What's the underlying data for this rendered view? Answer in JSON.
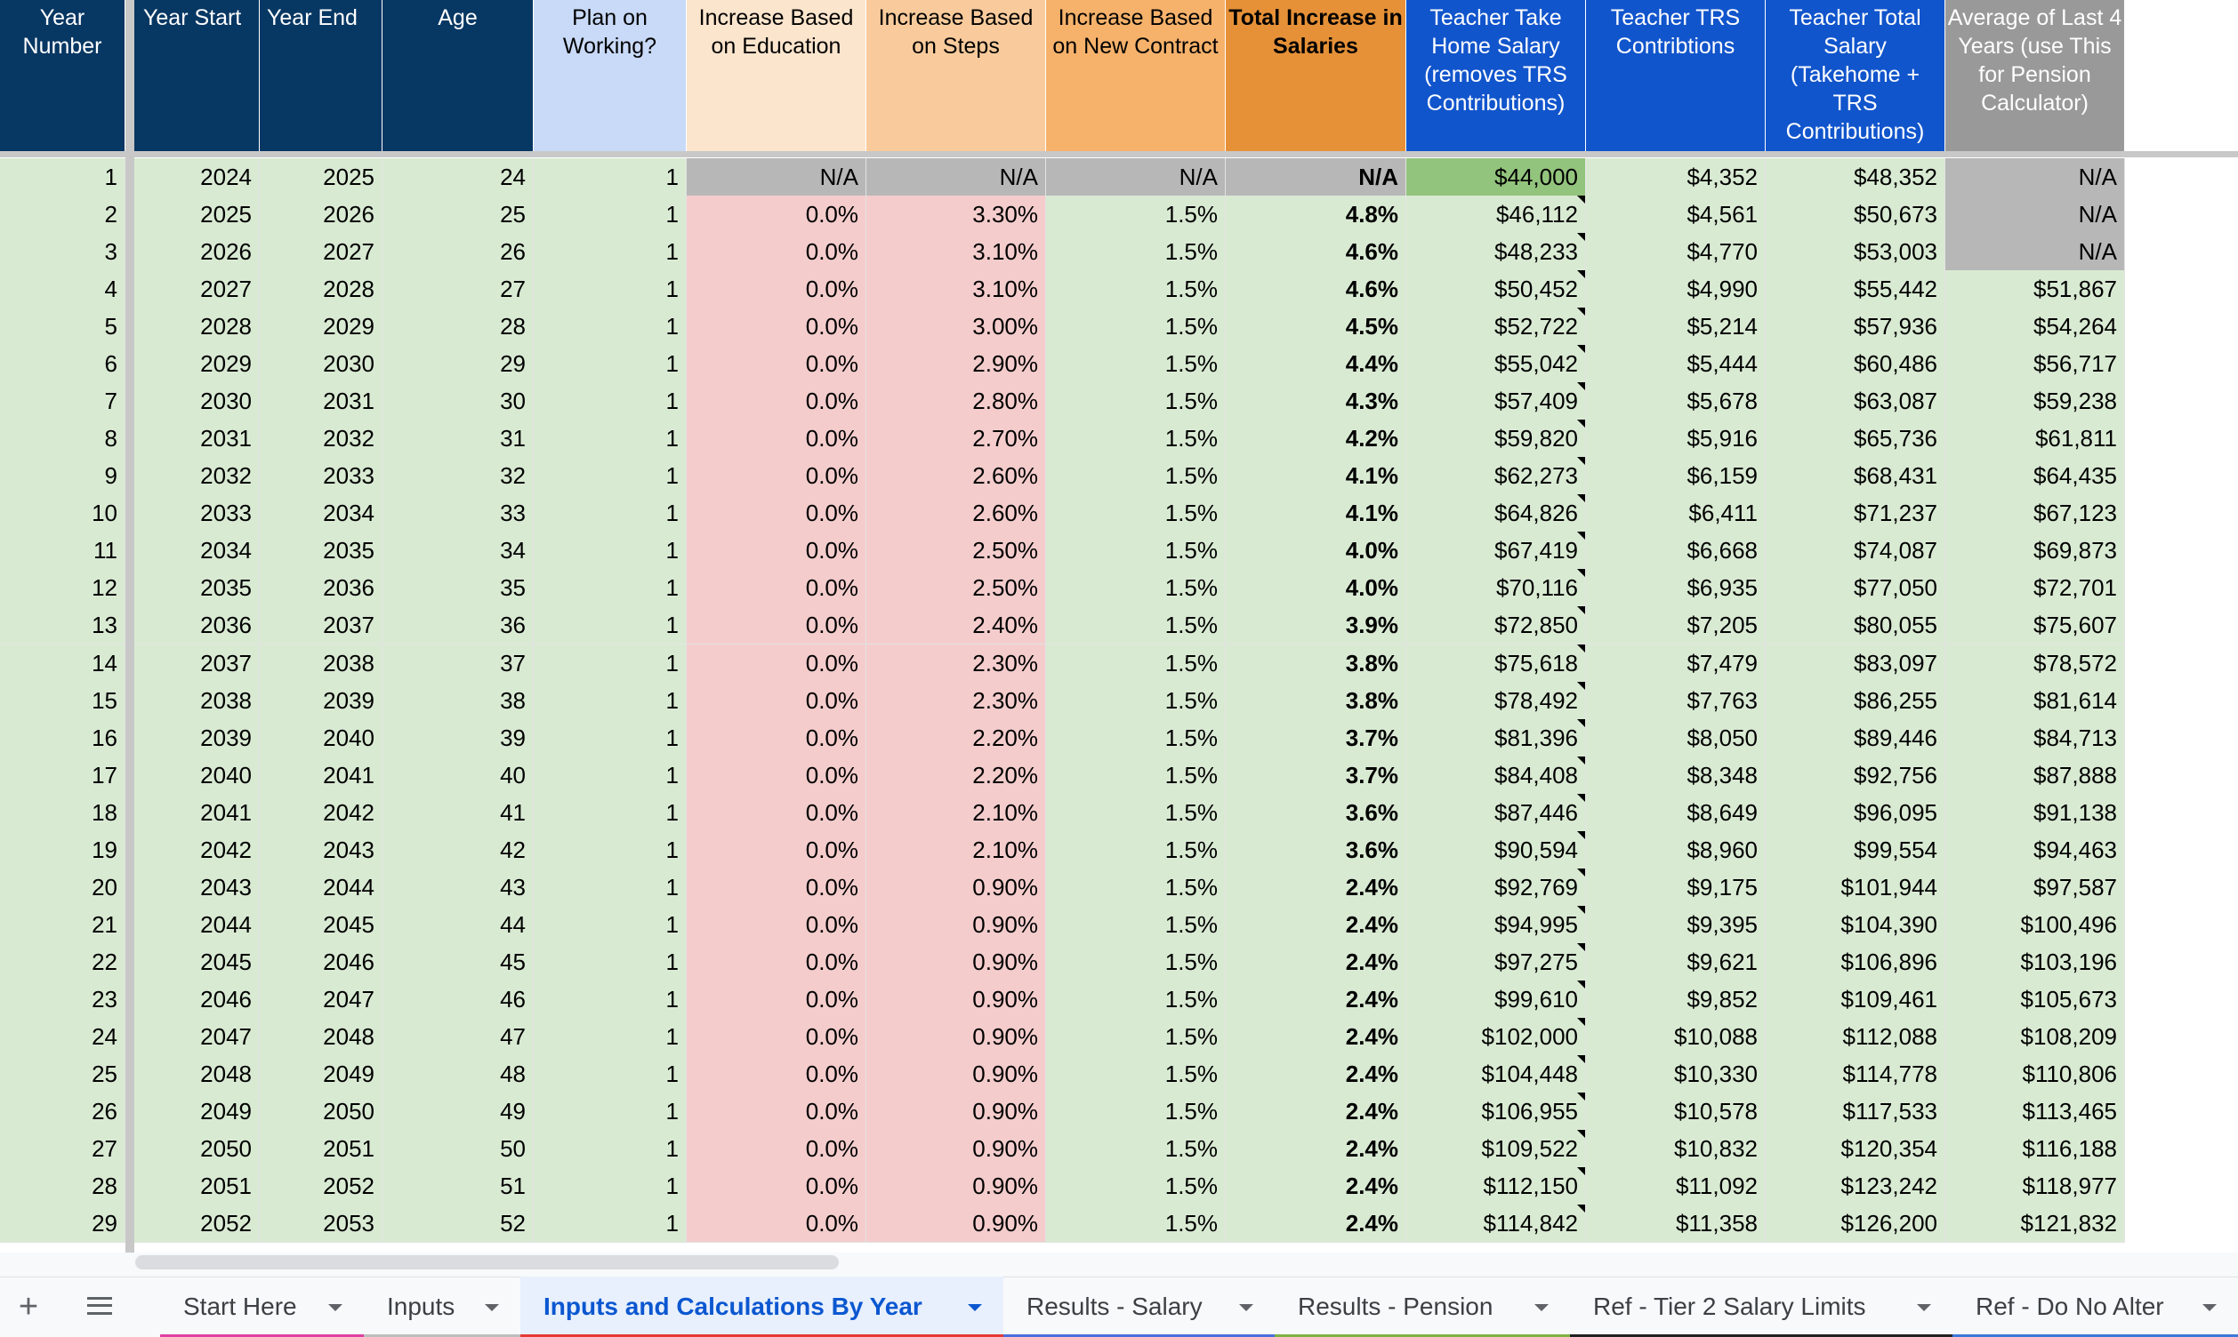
{
  "sheet": {
    "headers": [
      "Year Number",
      "Year Start",
      "Year End",
      "Age",
      "Plan on Working?",
      "Increase Based on Education",
      "Increase Based on Steps",
      "Increase Based on New Contract",
      "Total Increase in Salaries",
      "Teacher Take Home Salary (removes TRS Contributions)",
      "Teacher TRS Contribtions",
      "Teacher Total Salary (Takehome + TRS Contributions)",
      "Average of Last 4 Years (use This for Pension Calculator)"
    ],
    "rows": [
      [
        "1",
        "2024",
        "2025",
        "24",
        "1",
        "N/A",
        "N/A",
        "N/A",
        "N/A",
        "$44,000",
        "$4,352",
        "$48,352",
        "N/A"
      ],
      [
        "2",
        "2025",
        "2026",
        "25",
        "1",
        "0.0%",
        "3.30%",
        "1.5%",
        "4.8%",
        "$46,112",
        "$4,561",
        "$50,673",
        "N/A"
      ],
      [
        "3",
        "2026",
        "2027",
        "26",
        "1",
        "0.0%",
        "3.10%",
        "1.5%",
        "4.6%",
        "$48,233",
        "$4,770",
        "$53,003",
        "N/A"
      ],
      [
        "4",
        "2027",
        "2028",
        "27",
        "1",
        "0.0%",
        "3.10%",
        "1.5%",
        "4.6%",
        "$50,452",
        "$4,990",
        "$55,442",
        "$51,867"
      ],
      [
        "5",
        "2028",
        "2029",
        "28",
        "1",
        "0.0%",
        "3.00%",
        "1.5%",
        "4.5%",
        "$52,722",
        "$5,214",
        "$57,936",
        "$54,264"
      ],
      [
        "6",
        "2029",
        "2030",
        "29",
        "1",
        "0.0%",
        "2.90%",
        "1.5%",
        "4.4%",
        "$55,042",
        "$5,444",
        "$60,486",
        "$56,717"
      ],
      [
        "7",
        "2030",
        "2031",
        "30",
        "1",
        "0.0%",
        "2.80%",
        "1.5%",
        "4.3%",
        "$57,409",
        "$5,678",
        "$63,087",
        "$59,238"
      ],
      [
        "8",
        "2031",
        "2032",
        "31",
        "1",
        "0.0%",
        "2.70%",
        "1.5%",
        "4.2%",
        "$59,820",
        "$5,916",
        "$65,736",
        "$61,811"
      ],
      [
        "9",
        "2032",
        "2033",
        "32",
        "1",
        "0.0%",
        "2.60%",
        "1.5%",
        "4.1%",
        "$62,273",
        "$6,159",
        "$68,431",
        "$64,435"
      ],
      [
        "10",
        "2033",
        "2034",
        "33",
        "1",
        "0.0%",
        "2.60%",
        "1.5%",
        "4.1%",
        "$64,826",
        "$6,411",
        "$71,237",
        "$67,123"
      ],
      [
        "11",
        "2034",
        "2035",
        "34",
        "1",
        "0.0%",
        "2.50%",
        "1.5%",
        "4.0%",
        "$67,419",
        "$6,668",
        "$74,087",
        "$69,873"
      ],
      [
        "12",
        "2035",
        "2036",
        "35",
        "1",
        "0.0%",
        "2.50%",
        "1.5%",
        "4.0%",
        "$70,116",
        "$6,935",
        "$77,050",
        "$72,701"
      ],
      [
        "13",
        "2036",
        "2037",
        "36",
        "1",
        "0.0%",
        "2.40%",
        "1.5%",
        "3.9%",
        "$72,850",
        "$7,205",
        "$80,055",
        "$75,607"
      ],
      [
        "14",
        "2037",
        "2038",
        "37",
        "1",
        "0.0%",
        "2.30%",
        "1.5%",
        "3.8%",
        "$75,618",
        "$7,479",
        "$83,097",
        "$78,572"
      ],
      [
        "15",
        "2038",
        "2039",
        "38",
        "1",
        "0.0%",
        "2.30%",
        "1.5%",
        "3.8%",
        "$78,492",
        "$7,763",
        "$86,255",
        "$81,614"
      ],
      [
        "16",
        "2039",
        "2040",
        "39",
        "1",
        "0.0%",
        "2.20%",
        "1.5%",
        "3.7%",
        "$81,396",
        "$8,050",
        "$89,446",
        "$84,713"
      ],
      [
        "17",
        "2040",
        "2041",
        "40",
        "1",
        "0.0%",
        "2.20%",
        "1.5%",
        "3.7%",
        "$84,408",
        "$8,348",
        "$92,756",
        "$87,888"
      ],
      [
        "18",
        "2041",
        "2042",
        "41",
        "1",
        "0.0%",
        "2.10%",
        "1.5%",
        "3.6%",
        "$87,446",
        "$8,649",
        "$96,095",
        "$91,138"
      ],
      [
        "19",
        "2042",
        "2043",
        "42",
        "1",
        "0.0%",
        "2.10%",
        "1.5%",
        "3.6%",
        "$90,594",
        "$8,960",
        "$99,554",
        "$94,463"
      ],
      [
        "20",
        "2043",
        "2044",
        "43",
        "1",
        "0.0%",
        "0.90%",
        "1.5%",
        "2.4%",
        "$92,769",
        "$9,175",
        "$101,944",
        "$97,587"
      ],
      [
        "21",
        "2044",
        "2045",
        "44",
        "1",
        "0.0%",
        "0.90%",
        "1.5%",
        "2.4%",
        "$94,995",
        "$9,395",
        "$104,390",
        "$100,496"
      ],
      [
        "22",
        "2045",
        "2046",
        "45",
        "1",
        "0.0%",
        "0.90%",
        "1.5%",
        "2.4%",
        "$97,275",
        "$9,621",
        "$106,896",
        "$103,196"
      ],
      [
        "23",
        "2046",
        "2047",
        "46",
        "1",
        "0.0%",
        "0.90%",
        "1.5%",
        "2.4%",
        "$99,610",
        "$9,852",
        "$109,461",
        "$105,673"
      ],
      [
        "24",
        "2047",
        "2048",
        "47",
        "1",
        "0.0%",
        "0.90%",
        "1.5%",
        "2.4%",
        "$102,000",
        "$10,088",
        "$112,088",
        "$108,209"
      ],
      [
        "25",
        "2048",
        "2049",
        "48",
        "1",
        "0.0%",
        "0.90%",
        "1.5%",
        "2.4%",
        "$104,448",
        "$10,330",
        "$114,778",
        "$110,806"
      ],
      [
        "26",
        "2049",
        "2050",
        "49",
        "1",
        "0.0%",
        "0.90%",
        "1.5%",
        "2.4%",
        "$106,955",
        "$10,578",
        "$117,533",
        "$113,465"
      ],
      [
        "27",
        "2050",
        "2051",
        "50",
        "1",
        "0.0%",
        "0.90%",
        "1.5%",
        "2.4%",
        "$109,522",
        "$10,832",
        "$120,354",
        "$116,188"
      ],
      [
        "28",
        "2051",
        "2052",
        "51",
        "1",
        "0.0%",
        "0.90%",
        "1.5%",
        "2.4%",
        "$112,150",
        "$11,092",
        "$123,242",
        "$118,977"
      ],
      [
        "29",
        "2052",
        "2053",
        "52",
        "1",
        "0.0%",
        "0.90%",
        "1.5%",
        "2.4%",
        "$114,842",
        "$11,358",
        "$126,200",
        "$121,832"
      ]
    ]
  },
  "tabs": [
    "Start Here",
    "Inputs",
    "Inputs and Calculations By Year",
    "Results - Salary",
    "Results - Pension",
    "Ref - Tier 2 Salary Limits",
    "Ref - Do No Alter"
  ],
  "active_tab": 2
}
